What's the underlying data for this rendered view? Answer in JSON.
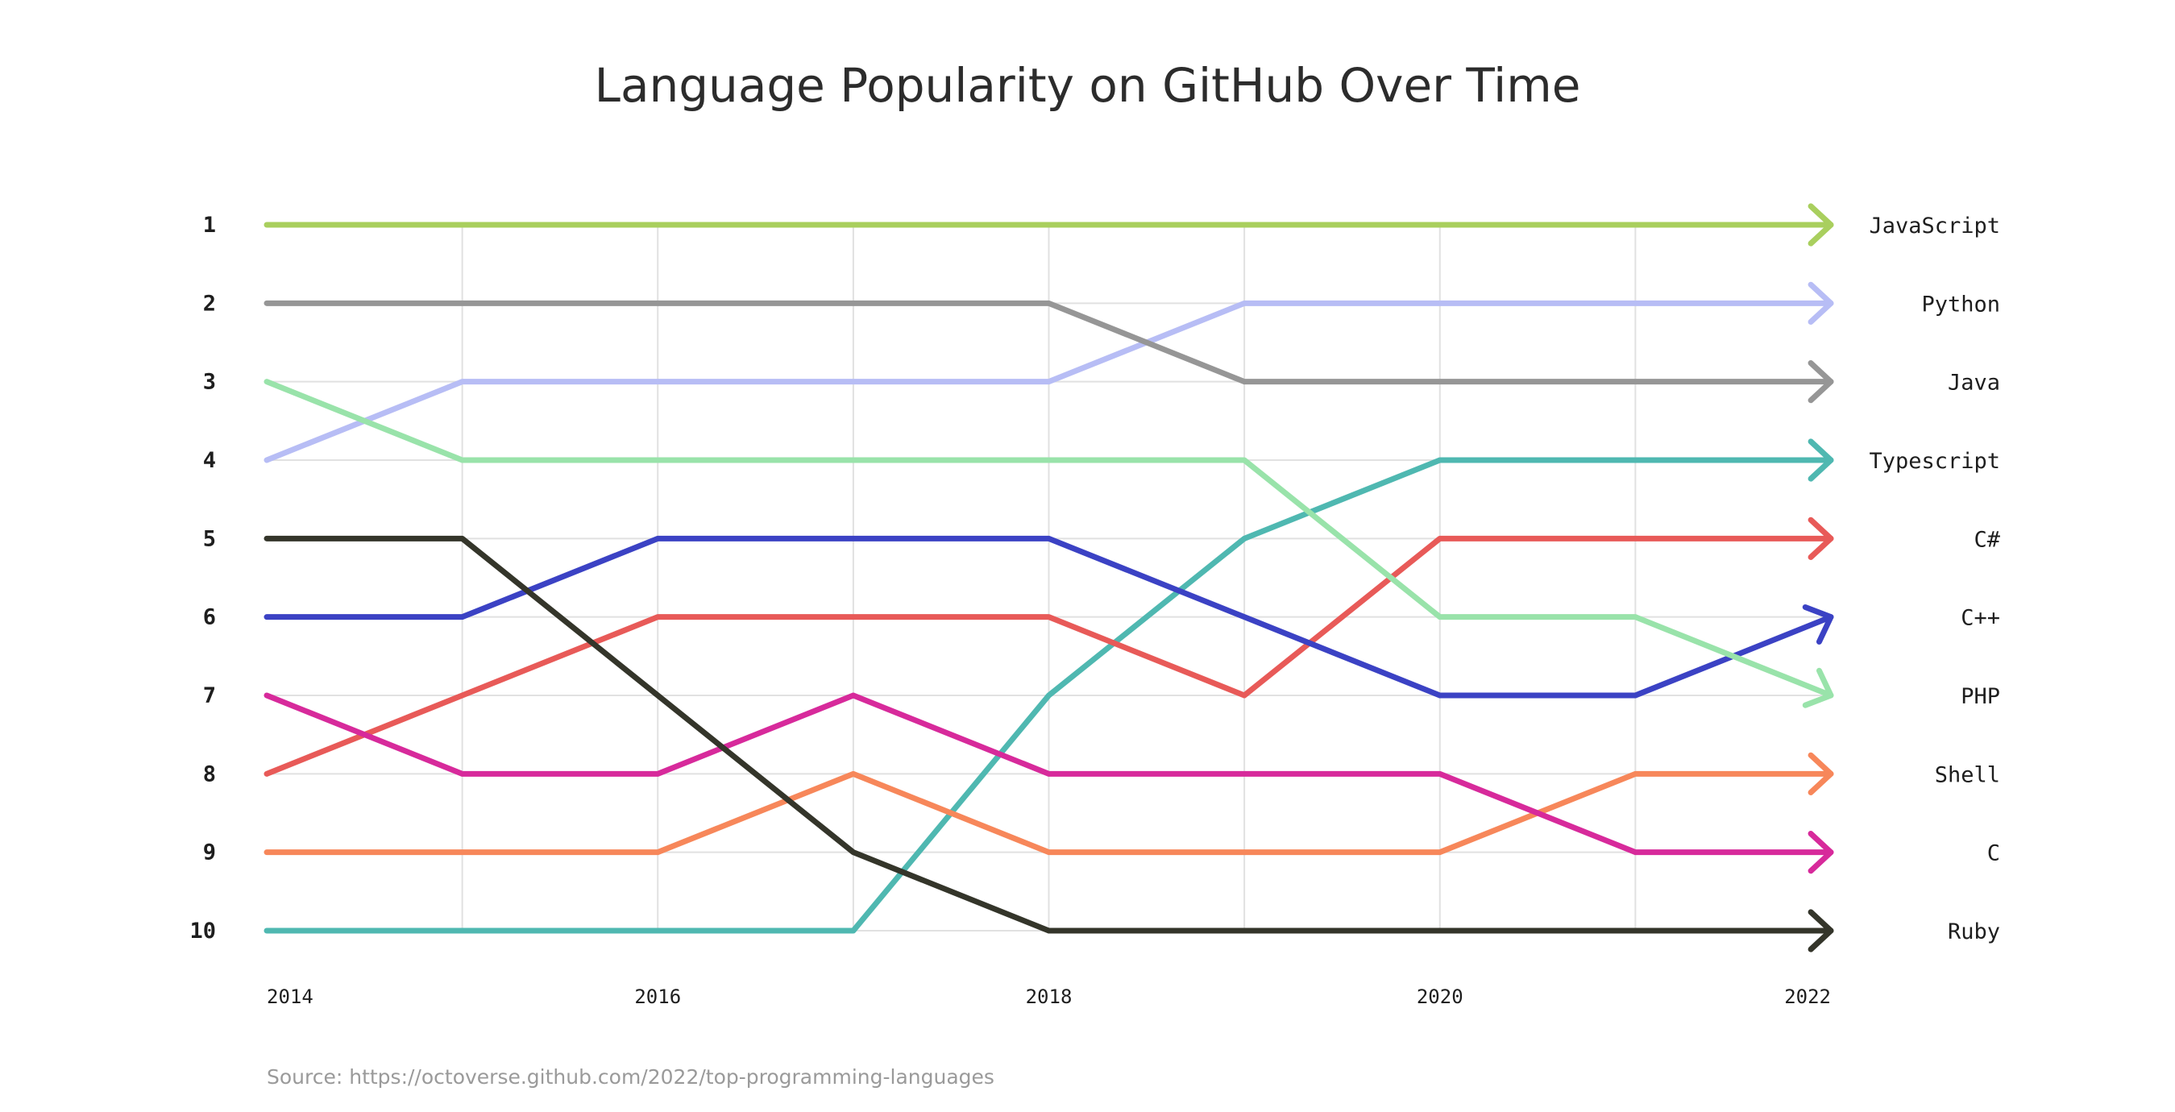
{
  "title": "Language Popularity on GitHub Over Time",
  "source": "Source: https://octoverse.github.com/2022/top-programming-languages",
  "chart_data": {
    "type": "line",
    "title": "Language Popularity on GitHub Over Time",
    "xlabel": "",
    "ylabel": "",
    "x": [
      2014,
      2015,
      2016,
      2017,
      2018,
      2019,
      2020,
      2021,
      2022
    ],
    "x_tick_labels": [
      "2014",
      "2016",
      "2018",
      "2020",
      "2022"
    ],
    "y_tick_labels": [
      "1",
      "2",
      "3",
      "4",
      "5",
      "6",
      "7",
      "8",
      "9",
      "10"
    ],
    "ylim": [
      1,
      10
    ],
    "y_inverted": true,
    "grid": true,
    "legend": "labels at right end of each line",
    "series": [
      {
        "name": "JavaScript",
        "color": "#a9cf5e",
        "values": [
          1,
          1,
          1,
          1,
          1,
          1,
          1,
          1,
          1
        ]
      },
      {
        "name": "Python",
        "color": "#b7bdf5",
        "values": [
          4,
          3,
          3,
          3,
          3,
          2,
          2,
          2,
          2
        ]
      },
      {
        "name": "Java",
        "color": "#969696",
        "values": [
          2,
          2,
          2,
          2,
          2,
          3,
          3,
          3,
          3
        ]
      },
      {
        "name": "Typescript",
        "color": "#4fb8b1",
        "values": [
          10,
          10,
          10,
          10,
          7,
          5,
          4,
          4,
          4
        ]
      },
      {
        "name": "C#",
        "color": "#e85a58",
        "values": [
          8,
          7,
          6,
          6,
          6,
          7,
          5,
          5,
          5
        ]
      },
      {
        "name": "C++",
        "color": "#3b42c4",
        "values": [
          6,
          6,
          5,
          5,
          5,
          6,
          7,
          7,
          6
        ]
      },
      {
        "name": "PHP",
        "color": "#99e3aa",
        "values": [
          3,
          4,
          4,
          4,
          4,
          4,
          6,
          6,
          7
        ]
      },
      {
        "name": "Shell",
        "color": "#f7875a",
        "values": [
          9,
          9,
          9,
          8,
          9,
          9,
          9,
          8,
          8
        ]
      },
      {
        "name": "C",
        "color": "#d72a9b",
        "values": [
          7,
          8,
          8,
          7,
          8,
          8,
          8,
          9,
          9
        ]
      },
      {
        "name": "Ruby",
        "color": "#34352a",
        "values": [
          5,
          5,
          7,
          9,
          10,
          10,
          10,
          10,
          10
        ]
      }
    ]
  }
}
